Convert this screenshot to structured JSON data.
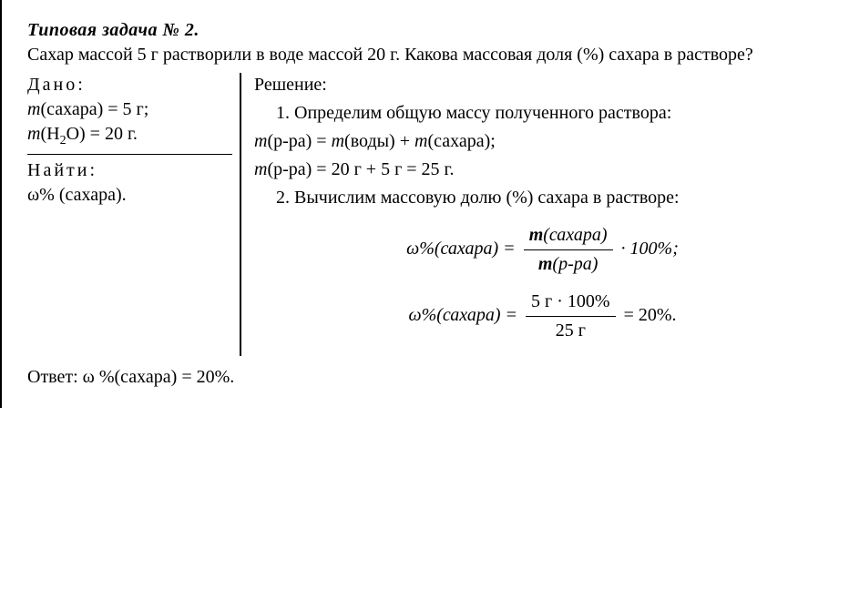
{
  "title": "Типовая задача № 2.",
  "problem": "Сахар массой 5 г растворили в воде массой 20 г. Какова массовая доля (%) сахара в растворе?",
  "given": {
    "label": "Дано:",
    "lines": {
      "sugar_var": "m",
      "sugar_arg": "(сахара) = 5 г;",
      "water_var": "m",
      "water_arg_pre": "(H",
      "water_sub": "2",
      "water_arg_post": "O) = 20 г."
    }
  },
  "find": {
    "label": "Найти:",
    "line": "ω% (сахара)."
  },
  "solution": {
    "label": "Решение:",
    "step1": "1. Определим общую массу полученного раствора:",
    "eq1a": {
      "m1": "m",
      "a1": "(р-ра) = ",
      "m2": "m",
      "a2": "(воды) + ",
      "m3": "m",
      "a3": "(сахара);"
    },
    "eq1b": {
      "m1": "m",
      "a1": "(р-ра) = 20 г + 5 г = 25 г."
    },
    "step2": "2. Вычислим массовую долю (%) сахара в растворе:",
    "formula1": {
      "lhs": "ω%(сахара) = ",
      "num_m": "m",
      "num": "(сахара)",
      "den_m": "m",
      "den": "(р-ра)",
      "rhs": " · 100%;"
    },
    "formula2": {
      "lhs": "ω%(сахара) = ",
      "num": "5 г · 100%",
      "den": "25 г",
      "rhs": " = 20%."
    }
  },
  "answer": "Ответ: ω %(сахара) = 20%."
}
